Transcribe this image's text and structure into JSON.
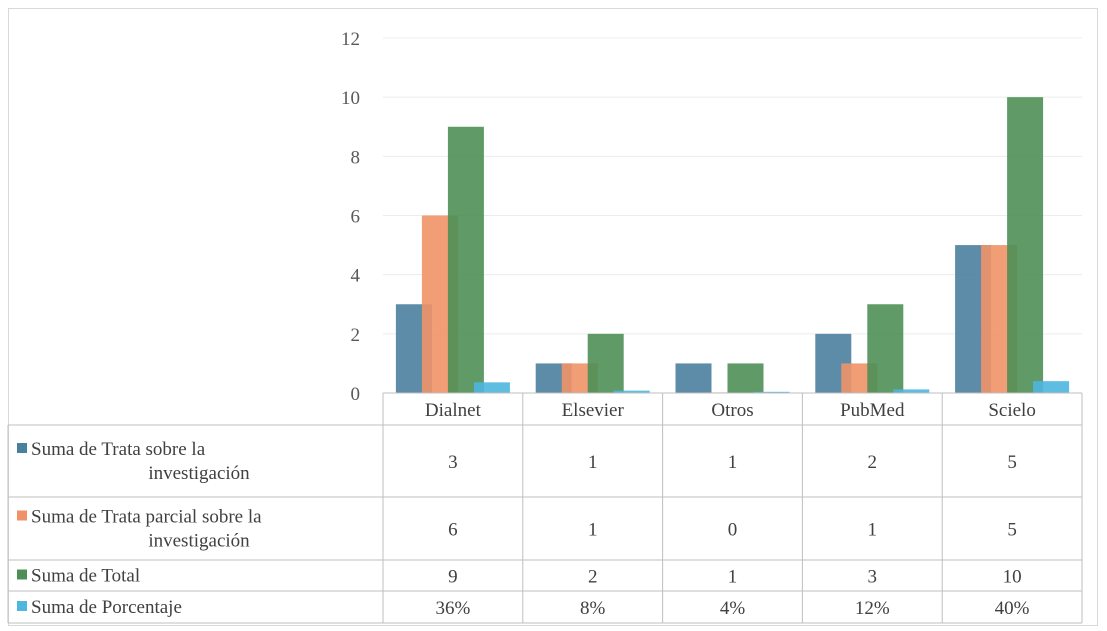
{
  "chart_data": {
    "type": "bar",
    "categories": [
      "Dialnet",
      "Elsevier",
      "Otros",
      "PubMed",
      "Scielo"
    ],
    "series": [
      {
        "name": "Suma de Trata sobre la investigación",
        "legend_lines": [
          "Suma de Trata sobre la",
          "investigación"
        ],
        "values": [
          3,
          1,
          1,
          2,
          5
        ],
        "display": [
          "3",
          "1",
          "1",
          "2",
          "5"
        ],
        "color": "#4a7f9e"
      },
      {
        "name": "Suma de Trata parcial sobre la investigación",
        "legend_lines": [
          "Suma de Trata parcial sobre la",
          "investigación"
        ],
        "values": [
          6,
          1,
          0,
          1,
          5
        ],
        "display": [
          "6",
          "1",
          "0",
          "1",
          "5"
        ],
        "color": "#ef9267"
      },
      {
        "name": "Suma de Total",
        "legend_lines": [
          "Suma de Total"
        ],
        "values": [
          9,
          2,
          1,
          3,
          10
        ],
        "display": [
          "9",
          "2",
          "1",
          "3",
          "10"
        ],
        "color": "#4e8f57"
      },
      {
        "name": "Suma de Porcentaje",
        "legend_lines": [
          "Suma de Porcentaje"
        ],
        "values": [
          0.36,
          0.08,
          0.04,
          0.12,
          0.4
        ],
        "display": [
          "36%",
          "8%",
          "4%",
          "12%",
          "40%"
        ],
        "color": "#4fb6df"
      }
    ],
    "ylim": [
      0,
      12
    ],
    "yticks": [
      0,
      2,
      4,
      6,
      8,
      10,
      12
    ],
    "grid": true,
    "legend": "data-table"
  }
}
